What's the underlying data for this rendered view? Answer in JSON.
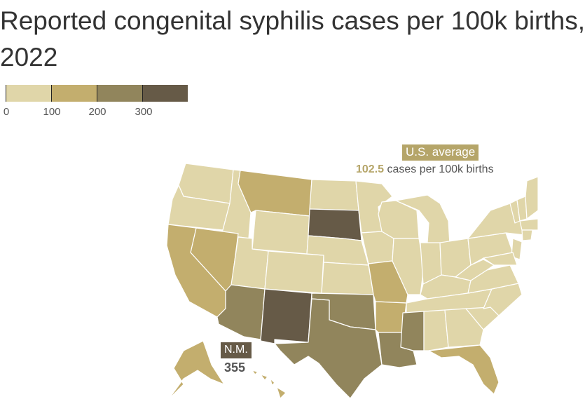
{
  "title": {
    "line1": "Reported congenital syphilis cases per 100k births,",
    "line2": "2022"
  },
  "legend": {
    "ticks": [
      "0",
      "100",
      "200",
      "300"
    ],
    "colors": [
      "#e0d6a9",
      "#c3ae6e",
      "#91855c",
      "#665a47"
    ]
  },
  "us_average": {
    "badge": "U.S. average",
    "value": "102.5",
    "text": " cases per 100k births"
  },
  "callout": {
    "state": "N.M.",
    "value": "355"
  },
  "colors": {
    "tier0": "#e0d6a9",
    "tier1": "#c3ae6e",
    "tier2": "#91855c",
    "tier3": "#665a47",
    "badge_us": "#b5a569",
    "border": "#ffffff"
  }
}
